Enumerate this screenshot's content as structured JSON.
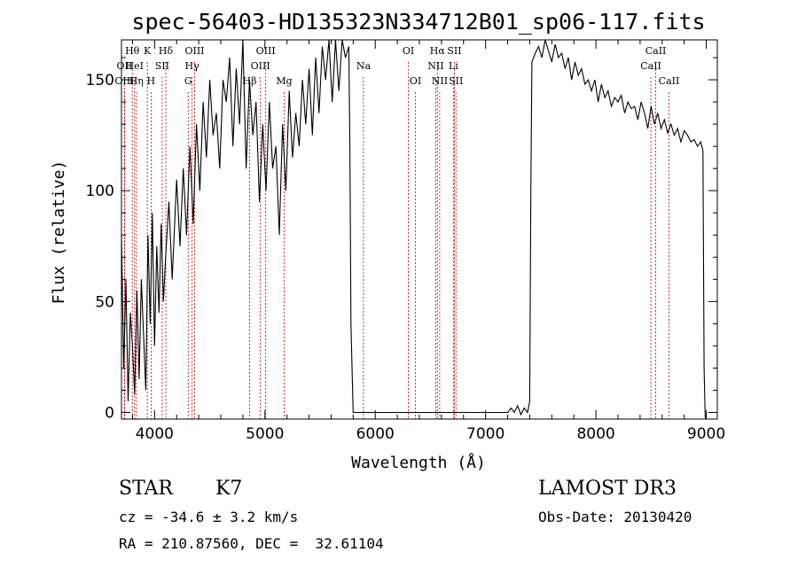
{
  "chart_data": {
    "type": "line",
    "title": "spec-56403-HD135323N334712B01_sp06-117.fits",
    "xlabel": "Wavelength (Å)",
    "ylabel": "Flux (relative)",
    "xlim": [
      3700,
      9100
    ],
    "ylim": [
      -3,
      168
    ],
    "xticks": [
      4000,
      5000,
      6000,
      7000,
      8000,
      9000
    ],
    "yticks": [
      0,
      50,
      100,
      150
    ],
    "x_minor_step": 200,
    "y_minor_step": 10,
    "grid": false,
    "series": [
      {
        "x": [
          3700,
          3720,
          3740,
          3760,
          3780,
          3800,
          3820,
          3840,
          3860,
          3880,
          3900,
          3920,
          3940,
          3960,
          3980,
          4000,
          4020,
          4040,
          4060,
          4080,
          4100,
          4130,
          4160,
          4200,
          4230,
          4260,
          4290,
          4320,
          4350,
          4380,
          4410,
          4440,
          4470,
          4500,
          4530,
          4560,
          4590,
          4620,
          4650,
          4680,
          4710,
          4740,
          4770,
          4800,
          4830,
          4860,
          4890,
          4920,
          4950,
          4980,
          5010,
          5040,
          5070,
          5100,
          5130,
          5160,
          5190,
          5220,
          5250,
          5280,
          5310,
          5340,
          5370,
          5400,
          5430,
          5460,
          5490,
          5520,
          5550,
          5580,
          5610,
          5640,
          5670,
          5700,
          5730,
          5760,
          5770,
          5780,
          5800,
          6000,
          6500,
          7000,
          7200,
          7230,
          7260,
          7290,
          7320,
          7350,
          7380,
          7400,
          7410,
          7420,
          7450,
          7480,
          7510,
          7540,
          7570,
          7600,
          7630,
          7660,
          7690,
          7720,
          7750,
          7780,
          7810,
          7840,
          7870,
          7900,
          7930,
          7960,
          7990,
          8020,
          8050,
          8080,
          8110,
          8140,
          8170,
          8200,
          8230,
          8260,
          8290,
          8320,
          8350,
          8380,
          8410,
          8440,
          8470,
          8500,
          8530,
          8560,
          8590,
          8620,
          8650,
          8680,
          8710,
          8740,
          8770,
          8800,
          8830,
          8860,
          8890,
          8920,
          8950,
          8970,
          8980,
          8990,
          9000
        ],
        "y": [
          80,
          20,
          60,
          5,
          45,
          30,
          8,
          55,
          15,
          60,
          35,
          10,
          80,
          40,
          90,
          30,
          75,
          45,
          85,
          50,
          70,
          95,
          60,
          105,
          75,
          110,
          80,
          120,
          85,
          130,
          100,
          140,
          115,
          150,
          125,
          135,
          110,
          150,
          140,
          160,
          120,
          155,
          130,
          170,
          110,
          150,
          125,
          140,
          95,
          130,
          100,
          140,
          110,
          120,
          80,
          130,
          100,
          145,
          115,
          135,
          120,
          150,
          130,
          155,
          125,
          160,
          135,
          165,
          150,
          170,
          140,
          175,
          145,
          170,
          160,
          165,
          120,
          40,
          0,
          0,
          0,
          0,
          0,
          2,
          0,
          3,
          -1,
          2,
          0,
          5,
          100,
          158,
          162,
          165,
          160,
          168,
          163,
          158,
          166,
          160,
          162,
          155,
          160,
          150,
          158,
          152,
          155,
          148,
          150,
          145,
          150,
          140,
          148,
          142,
          145,
          138,
          142,
          140,
          143,
          135,
          140,
          137,
          138,
          132,
          140,
          135,
          128,
          138,
          130,
          135,
          128,
          132,
          126,
          130,
          125,
          128,
          122,
          127,
          125,
          122,
          123,
          120,
          122,
          118,
          20,
          -2,
          -3
        ]
      }
    ],
    "spectral_lines": [
      {
        "label": "Hθ",
        "wavelength": 3798,
        "row": 1
      },
      {
        "label": "OII",
        "wavelength": 3727,
        "row": 2
      },
      {
        "label": "OIII",
        "wavelength": 3727,
        "row": 3
      },
      {
        "label": "HeI",
        "wavelength": 3819,
        "row": 2
      },
      {
        "label": "Hη",
        "wavelength": 3835,
        "row": 3
      },
      {
        "label": "K",
        "wavelength": 3934,
        "row": 1
      },
      {
        "label": "H",
        "wavelength": 3968,
        "row": 3
      },
      {
        "label": "SII",
        "wavelength": 4069,
        "row": 2
      },
      {
        "label": "Hδ",
        "wavelength": 4102,
        "row": 1
      },
      {
        "label": "OIII",
        "wavelength": 4363,
        "row": 1
      },
      {
        "label": "Hγ",
        "wavelength": 4340,
        "row": 2
      },
      {
        "label": "G",
        "wavelength": 4305,
        "row": 3
      },
      {
        "label": "Hβ",
        "wavelength": 4861,
        "row": 3
      },
      {
        "label": "OIII",
        "wavelength": 5007,
        "row": 1
      },
      {
        "label": "OIII",
        "wavelength": 4959,
        "row": 2
      },
      {
        "label": "Mg",
        "wavelength": 5175,
        "row": 3
      },
      {
        "label": "Na",
        "wavelength": 5893,
        "row": 2
      },
      {
        "label": "OI",
        "wavelength": 6300,
        "row": 1
      },
      {
        "label": "OI",
        "wavelength": 6364,
        "row": 3
      },
      {
        "label": "Hα",
        "wavelength": 6563,
        "row": 1
      },
      {
        "label": "NII",
        "wavelength": 6548,
        "row": 2
      },
      {
        "label": "NII",
        "wavelength": 6584,
        "row": 3
      },
      {
        "label": "SII",
        "wavelength": 6717,
        "row": 1
      },
      {
        "label": "Li",
        "wavelength": 6708,
        "row": 2
      },
      {
        "label": "SII",
        "wavelength": 6731,
        "row": 3
      },
      {
        "label": "CaII",
        "wavelength": 8542,
        "row": 1
      },
      {
        "label": "CaII",
        "wavelength": 8498,
        "row": 2
      },
      {
        "label": "CaII",
        "wavelength": 8662,
        "row": 3
      }
    ]
  },
  "info": {
    "class_label": "STAR",
    "subclass": "K7",
    "survey": "LAMOST DR3",
    "cz": "cz = -34.6 ± 3.2 km/s",
    "obs_date": "Obs-Date: 20130420",
    "coords": "RA = 210.87560, DEC =  32.61104"
  },
  "colors": {
    "line": "#000000",
    "marker_lines": "#c00000",
    "background": "#ffffff"
  }
}
